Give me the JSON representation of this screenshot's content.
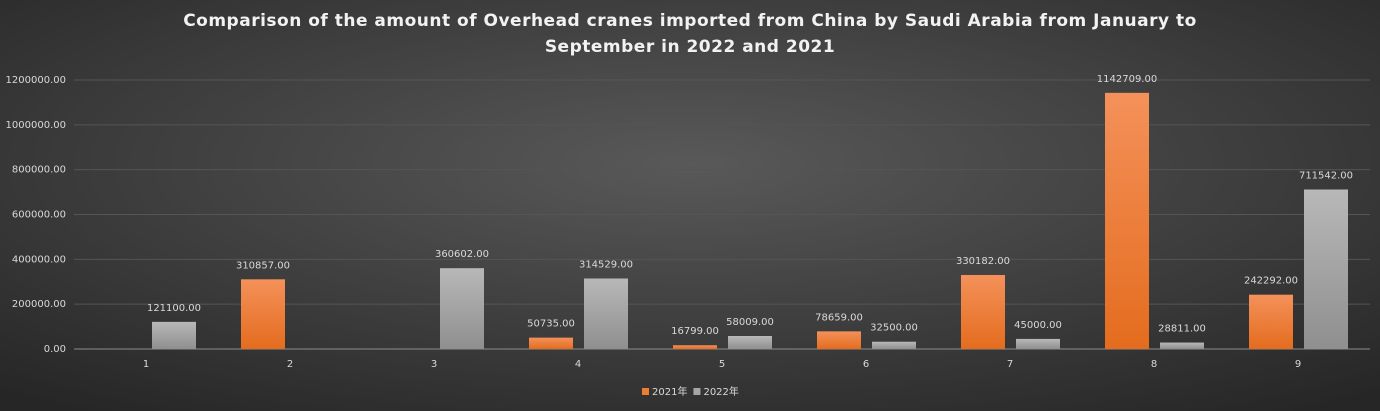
{
  "chart_data": {
    "type": "bar",
    "title": "Comparison of the amount of Overhead cranes imported from China by Saudi Arabia from January to September in 2022 and 2021",
    "categories": [
      "1",
      "2",
      "3",
      "4",
      "5",
      "6",
      "7",
      "8",
      "9"
    ],
    "series": [
      {
        "name": "2021年",
        "color": "#ed7d31",
        "values": [
          null,
          310857,
          null,
          50735,
          16799,
          78659,
          330182,
          1142709,
          242292
        ],
        "value_labels": [
          null,
          "310857.00",
          null,
          "50735.00",
          "16799.00",
          "78659.00",
          "330182.00",
          "1142709.00",
          "242292.00"
        ]
      },
      {
        "name": "2022年",
        "color": "#a5a5a5",
        "values": [
          121100,
          null,
          360602,
          314529,
          58009,
          32500,
          45000,
          28811,
          711542
        ],
        "value_labels": [
          "121100.00",
          null,
          "360602.00",
          "314529.00",
          "58009.00",
          "32500.00",
          "45000.00",
          "28811.00",
          "711542.00"
        ]
      }
    ],
    "ylim": [
      0,
      1200000
    ],
    "yticks": [
      {
        "value": 0,
        "label": "0.00"
      },
      {
        "value": 200000,
        "label": "200000.00"
      },
      {
        "value": 400000,
        "label": "400000.00"
      },
      {
        "value": 600000,
        "label": "600000.00"
      },
      {
        "value": 800000,
        "label": "800000.00"
      },
      {
        "value": 1000000,
        "label": "1000000.00"
      },
      {
        "value": 1200000,
        "label": "1200000.00"
      }
    ],
    "grid": true,
    "legend": "bottom"
  }
}
